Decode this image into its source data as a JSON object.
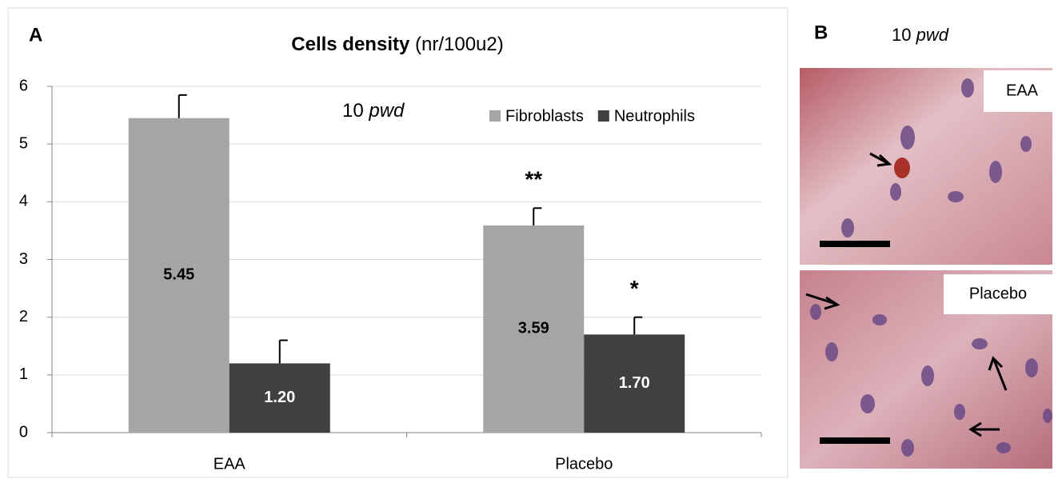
{
  "chart_data": {
    "type": "bar",
    "panel": "A",
    "title": "Cells density",
    "title_unit": "(nr/100u2)",
    "annotation": [
      "10",
      "pwd"
    ],
    "categories": [
      "EAA",
      "Placebo"
    ],
    "series": [
      {
        "name": "Fibroblasts",
        "color": "#a5a5a5",
        "values": [
          5.45,
          3.59
        ],
        "errors": [
          0.4,
          0.3
        ],
        "value_labels": [
          "5.45",
          "3.59"
        ],
        "significance": [
          null,
          "**"
        ]
      },
      {
        "name": "Neutrophils",
        "color": "#404040",
        "values": [
          1.2,
          1.7
        ],
        "errors": [
          0.4,
          0.3
        ],
        "value_labels": [
          "1.20",
          "1.70"
        ],
        "significance": [
          null,
          "*"
        ]
      }
    ],
    "ylim": [
      0,
      6
    ],
    "yticks": [
      0,
      1,
      2,
      3,
      4,
      5,
      6
    ],
    "grid": true,
    "legend": "top-right"
  },
  "figure": {
    "panel": "B",
    "title": [
      "10",
      "pwd"
    ],
    "images": [
      {
        "label": "EAA"
      },
      {
        "label": "Placebo"
      }
    ]
  }
}
